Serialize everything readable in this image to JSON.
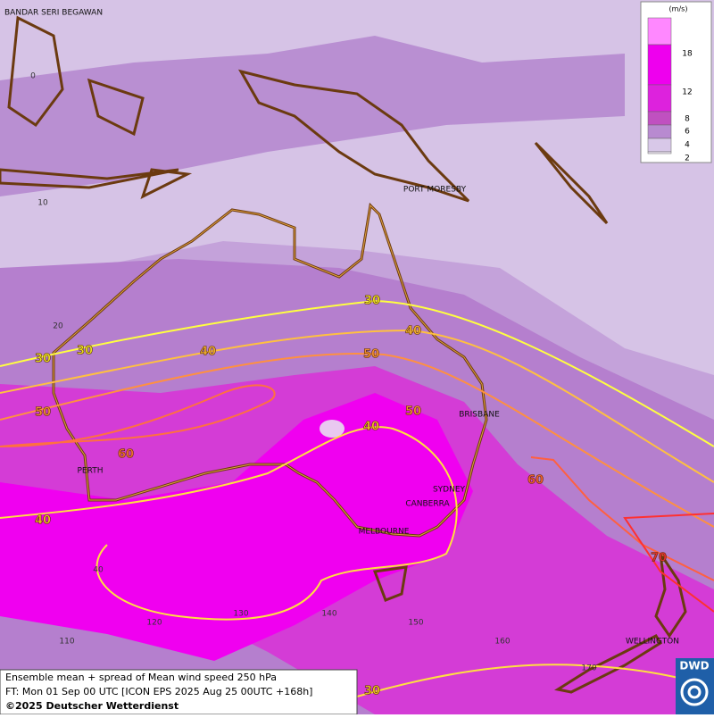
{
  "legend": {
    "unit": "(m/s)",
    "levels": [
      18,
      12,
      8,
      6,
      4,
      2
    ]
  },
  "places": [
    "BANDAR SERI BEGAWAN",
    "PORT MORESBY",
    "BRISBANE",
    "PERTH",
    "SYDNEY",
    "CANBERRA",
    "MELBOURNE",
    "WELLINGTON"
  ],
  "grid_labels": {
    "lat": [
      0,
      10,
      20,
      40
    ],
    "lon": [
      110,
      120,
      130,
      140,
      150,
      160,
      170
    ]
  },
  "contour_labels": [
    30,
    30,
    30,
    30,
    40,
    40,
    40,
    40,
    50,
    50,
    50,
    60,
    60,
    70
  ],
  "footer": [
    "Ensemble mean + spread of Mean wind speed 250 hPa",
    "FT: Mon 01 Sep 00 UTC [ICON EPS 2025 Aug 25 00UTC +168h]",
    "©2025 Deutscher Wetterdienst"
  ],
  "logo": "DWD"
}
